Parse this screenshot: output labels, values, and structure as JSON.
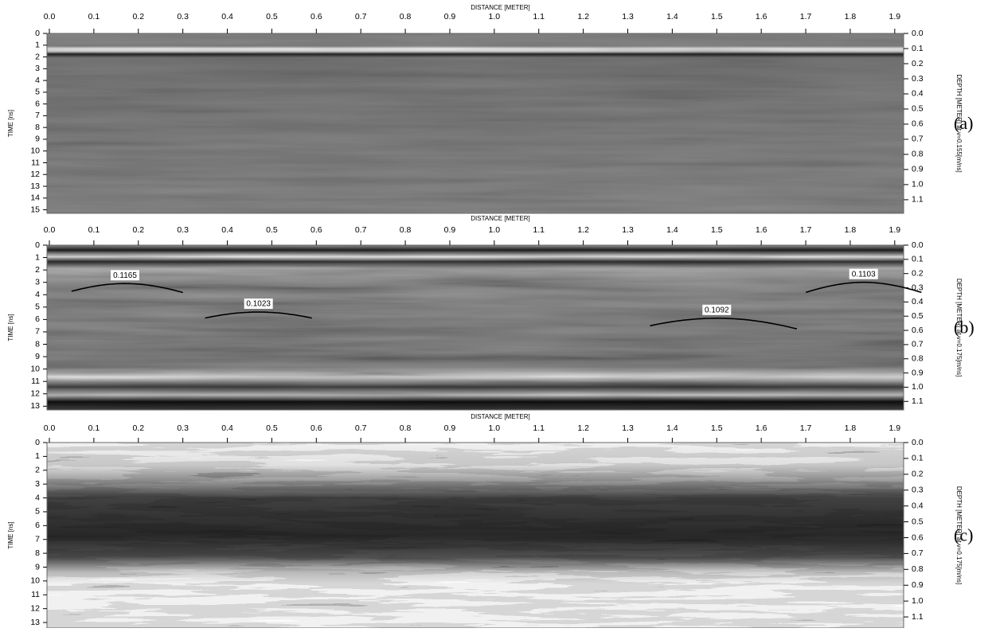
{
  "chart_data": [
    {
      "type": "radargram",
      "title": "DISTANCE [METER]",
      "ylabel": "TIME [ns]",
      "y2label": "DEPTH [METER] at v=0.155[m/ns]",
      "panel_label": "(a)",
      "xlim": [
        0,
        1.92
      ],
      "xticks": [
        {
          "value": 0,
          "label": "0.0"
        },
        0.1,
        0.2,
        0.3,
        0.4,
        0.5,
        0.6,
        0.7,
        0.8,
        0.9,
        {
          "value": 1,
          "label": "1.0"
        },
        1.1,
        1.2,
        1.3,
        1.4,
        1.5,
        1.6,
        1.7,
        1.8,
        1.9
      ],
      "ylim": [
        0,
        15.3
      ],
      "yticks": [
        0,
        1,
        2,
        3,
        4,
        5,
        6,
        7,
        8,
        9,
        10,
        11,
        12,
        13,
        14,
        15
      ],
      "y2lim": [
        0,
        1.19
      ],
      "y2ticks": [
        {
          "value": 0,
          "label": "0.0"
        },
        0.1,
        0.2,
        0.3,
        0.4,
        0.5,
        0.6,
        0.7,
        0.8,
        0.9,
        {
          "value": 1,
          "label": "1.0"
        },
        1.1
      ],
      "hyperbolas": []
    },
    {
      "type": "radargram",
      "title": "DISTANCE [METER]",
      "ylabel": "TIME [ns]",
      "y2label": "DEPTH [METER] at v=0.175[m/ns]",
      "panel_label": "(b)",
      "xlim": [
        0,
        1.92
      ],
      "xticks": [
        {
          "value": 0,
          "label": "0.0"
        },
        0.1,
        0.2,
        0.3,
        0.4,
        0.5,
        0.6,
        0.7,
        0.8,
        0.9,
        {
          "value": 1,
          "label": "1.0"
        },
        1.1,
        1.2,
        1.3,
        1.4,
        1.5,
        1.6,
        1.7,
        1.8,
        1.9
      ],
      "ylim": [
        0,
        13.3
      ],
      "yticks": [
        0,
        1,
        2,
        3,
        4,
        5,
        6,
        7,
        8,
        9,
        10,
        11,
        12,
        13
      ],
      "y2lim": [
        0,
        1.16
      ],
      "y2ticks": [
        {
          "value": 0,
          "label": "0.0"
        },
        0.1,
        0.2,
        0.3,
        0.4,
        0.5,
        0.6,
        0.7,
        0.8,
        0.9,
        {
          "value": 1,
          "label": "1.0"
        },
        1.1
      ],
      "hyperbolas": [
        {
          "velocity": 0.1165,
          "x": 0.17,
          "t": 3.1,
          "x_from": 0.05,
          "x_to": 0.3
        },
        {
          "velocity": 0.1023,
          "x": 0.47,
          "t": 5.4,
          "x_from": 0.35,
          "x_to": 0.59
        },
        {
          "velocity": 0.1092,
          "x": 1.5,
          "t": 5.9,
          "x_from": 1.35,
          "x_to": 1.68
        },
        {
          "velocity": 0.1103,
          "x": 1.83,
          "t": 3.0,
          "x_from": 1.7,
          "x_to": 1.96
        }
      ]
    },
    {
      "type": "radargram",
      "title": "DISTANCE [METER]",
      "ylabel": "TIME [ns]",
      "y2label": "DEPTH [METER] at v=0.175[m/ns]",
      "panel_label": "(c)",
      "xlim": [
        0,
        1.92
      ],
      "xticks": [
        {
          "value": 0,
          "label": "0.0"
        },
        0.1,
        0.2,
        0.3,
        0.4,
        0.5,
        0.6,
        0.7,
        0.8,
        0.9,
        {
          "value": 1,
          "label": "1.0"
        },
        1.1,
        1.2,
        1.3,
        1.4,
        1.5,
        1.6,
        1.7,
        1.8,
        1.9
      ],
      "ylim": [
        0,
        13.4
      ],
      "yticks": [
        0,
        1,
        2,
        3,
        4,
        5,
        6,
        7,
        8,
        9,
        10,
        11,
        12,
        13
      ],
      "y2lim": [
        0,
        1.17
      ],
      "y2ticks": [
        {
          "value": 0,
          "label": "0.0"
        },
        0.1,
        0.2,
        0.3,
        0.4,
        0.5,
        0.6,
        0.7,
        0.8,
        0.9,
        {
          "value": 1,
          "label": "1.0"
        },
        1.1
      ],
      "hyperbolas": []
    }
  ]
}
